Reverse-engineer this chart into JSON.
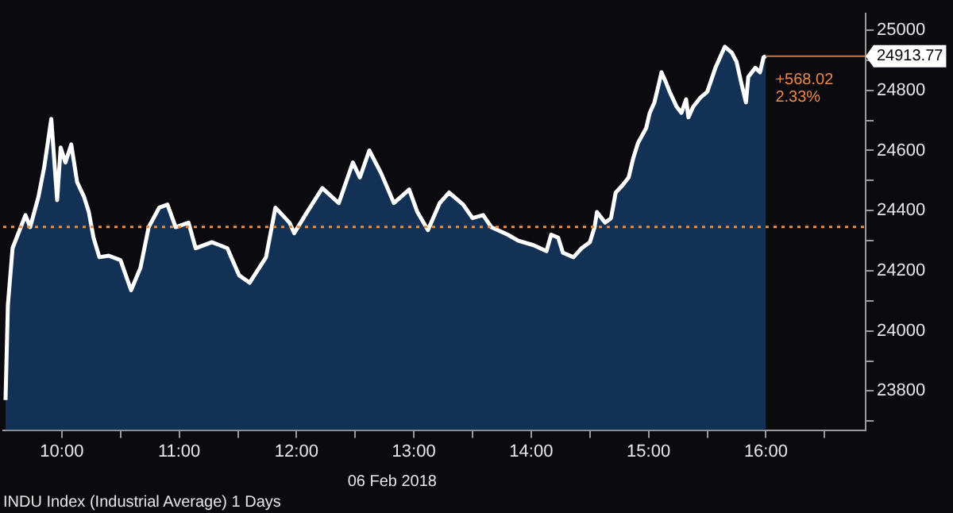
{
  "chart_data": {
    "type": "area",
    "x": [
      9.52,
      9.54,
      9.58,
      9.69,
      9.73,
      9.8,
      9.85,
      9.91,
      9.96,
      9.99,
      10.03,
      10.08,
      10.13,
      10.19,
      10.23,
      10.27,
      10.32,
      10.4,
      10.5,
      10.59,
      10.67,
      10.74,
      10.83,
      10.9,
      10.97,
      11.08,
      11.14,
      11.28,
      11.41,
      11.51,
      11.6,
      11.74,
      11.82,
      11.94,
      11.98,
      12.09,
      12.22,
      12.36,
      12.48,
      12.54,
      12.62,
      12.72,
      12.83,
      12.96,
      13.03,
      13.12,
      13.22,
      13.3,
      13.42,
      13.5,
      13.59,
      13.66,
      13.8,
      13.89,
      14.02,
      14.13,
      14.17,
      14.23,
      14.27,
      14.36,
      14.43,
      14.5,
      14.54,
      14.56,
      14.63,
      14.68,
      14.72,
      14.78,
      14.83,
      14.87,
      14.91,
      14.98,
      15.01,
      15.05,
      15.09,
      15.11,
      15.15,
      15.18,
      15.24,
      15.28,
      15.32,
      15.34,
      15.38,
      15.44,
      15.5,
      15.57,
      15.61,
      15.65,
      15.71,
      15.75,
      15.79,
      15.83,
      15.85,
      15.91,
      15.95,
      15.98,
      16
    ],
    "series": [
      {
        "color": "#ffffff",
        "values": [
          23770,
          24085,
          24275,
          24385,
          24345,
          24445,
          24545,
          24705,
          24435,
          24610,
          24560,
          24620,
          24495,
          24445,
          24395,
          24310,
          24245,
          24250,
          24235,
          24135,
          24210,
          24345,
          24410,
          24420,
          24345,
          24360,
          24275,
          24295,
          24275,
          24185,
          24160,
          24245,
          24410,
          24360,
          24325,
          24395,
          24475,
          24425,
          24560,
          24510,
          24600,
          24525,
          24425,
          24470,
          24395,
          24335,
          24425,
          24460,
          24420,
          24375,
          24385,
          24345,
          24320,
          24300,
          24285,
          24265,
          24320,
          24310,
          24260,
          24245,
          24275,
          24295,
          24345,
          24395,
          24360,
          24375,
          24460,
          24485,
          24510,
          24575,
          24625,
          24675,
          24725,
          24760,
          24825,
          24860,
          24825,
          24795,
          24745,
          24725,
          24770,
          24710,
          24745,
          24775,
          24795,
          24875,
          24910,
          24945,
          24925,
          24895,
          24825,
          24760,
          24845,
          24875,
          24860,
          24910,
          24913.77
        ]
      }
    ],
    "xlim": [
      9.5,
      16.85
    ],
    "xticks": [
      {
        "value": 10,
        "label": "10:00"
      },
      {
        "value": 10.5,
        "label": null
      },
      {
        "value": 11,
        "label": "11:00"
      },
      {
        "value": 11.5,
        "label": null
      },
      {
        "value": 12,
        "label": "12:00"
      },
      {
        "value": 12.5,
        "label": null
      },
      {
        "value": 13,
        "label": "13:00"
      },
      {
        "value": 13.5,
        "label": null
      },
      {
        "value": 14,
        "label": "14:00"
      },
      {
        "value": 14.5,
        "label": null
      },
      {
        "value": 15,
        "label": "15:00"
      },
      {
        "value": 15.5,
        "label": null
      },
      {
        "value": 16,
        "label": "16:00"
      },
      {
        "value": 16.5,
        "label": null
      }
    ],
    "ylim": [
      23670,
      25055
    ],
    "yticks": [
      {
        "value": 23700,
        "label": null
      },
      23800,
      {
        "value": 23900,
        "label": null
      },
      24000,
      {
        "value": 24100,
        "label": null
      },
      24200,
      {
        "value": 24300,
        "label": null
      },
      24400,
      {
        "value": 24500,
        "label": null
      },
      24600,
      {
        "value": 24700,
        "label": null
      },
      24800,
      {
        "value": 24900,
        "label": null
      },
      25000
    ],
    "ref_lines": [
      {
        "axis": "y",
        "value": 24346,
        "color": "#f08c3c",
        "line_style": "dotted"
      }
    ],
    "annotations": [
      {
        "text": "24913.77",
        "x": 16,
        "y": 24913.77
      },
      "+568.02",
      "2.33%",
      "06 Feb 2018",
      "INDU Index (Industrial Average) 1 Days"
    ],
    "grid": false,
    "legend": false,
    "marker": "none",
    "line_style": "solid"
  }
}
